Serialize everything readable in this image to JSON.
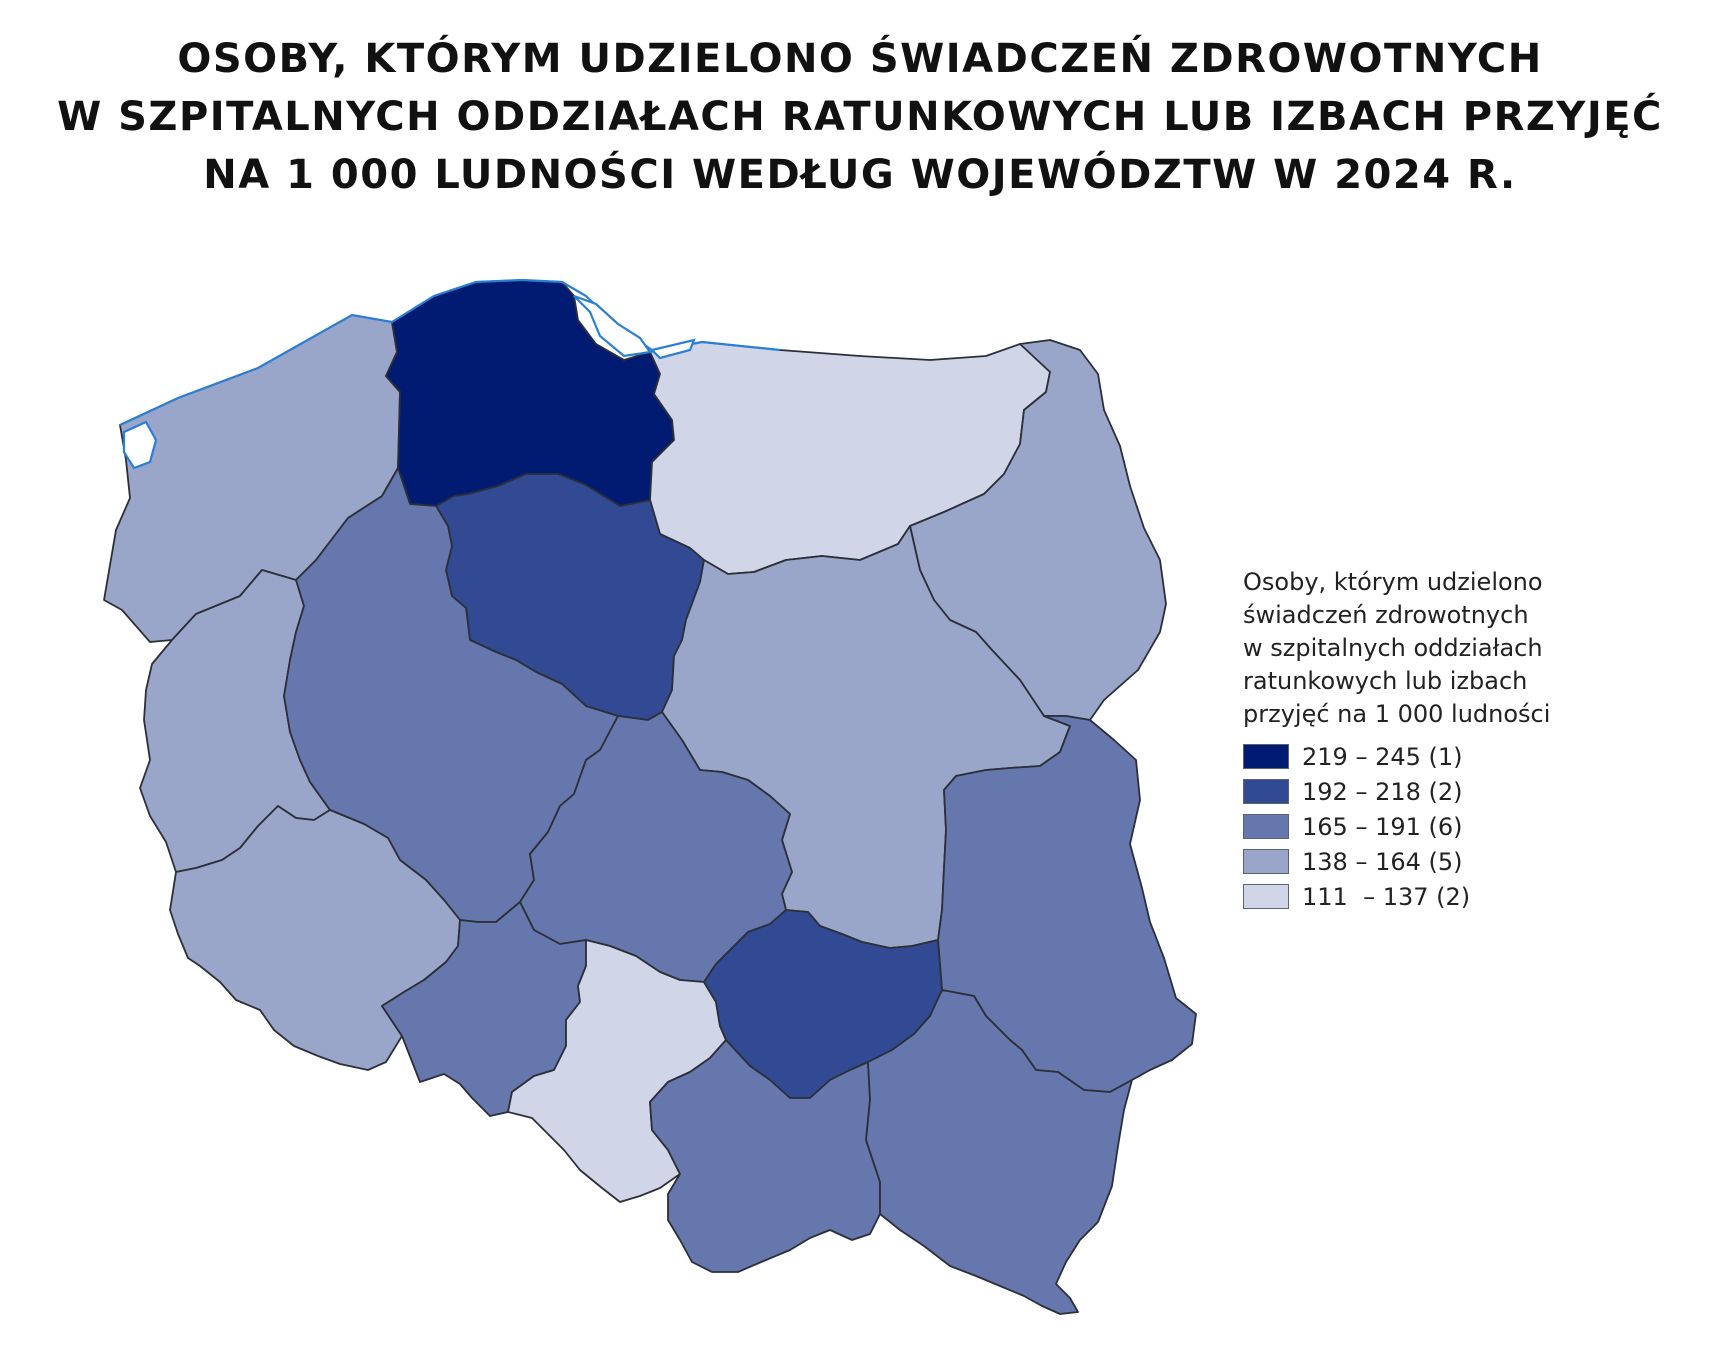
{
  "title_lines": [
    "OSOBY, KTÓRYM UDZIELONO ŚWIADCZEŃ ZDROWOTNYCH",
    "W SZPITALNYCH ODDZIAŁACH RATUNKOWYCH LUB IZBACH PRZYJĘĆ",
    "NA 1 000 LUDNOŚCI WEDŁUG WOJEWÓDZTW W 2024 R."
  ],
  "legend": {
    "title_lines": [
      "Osoby, którym udzielono",
      "świadczeń zdrowotnych",
      "w szpitalnych oddziałach",
      "ratunkowych lub izbach",
      "przyjęć na 1 000 ludności"
    ],
    "classes": [
      {
        "label": "219 – 245 (1)",
        "color": "#021b72"
      },
      {
        "label": "192 – 218 (2)",
        "color": "#324a93"
      },
      {
        "label": "165 – 191 (6)",
        "color": "#6677ad"
      },
      {
        "label": "138 – 164 (5)",
        "color": "#9aa6c9"
      },
      {
        "label": "111  – 137 (2)",
        "color": "#d0d5e7"
      }
    ]
  },
  "regions": [
    {
      "id": "pomorskie",
      "class": 0
    },
    {
      "id": "kujawsko-pomorskie",
      "class": 1
    },
    {
      "id": "swietokrzyskie",
      "class": 1
    },
    {
      "id": "wielkopolskie",
      "class": 2
    },
    {
      "id": "lodzkie",
      "class": 2
    },
    {
      "id": "lubelskie",
      "class": 2
    },
    {
      "id": "opolskie",
      "class": 2
    },
    {
      "id": "malopolskie",
      "class": 2
    },
    {
      "id": "podkarpackie",
      "class": 2
    },
    {
      "id": "zachodniopomorskie",
      "class": 3
    },
    {
      "id": "lubuskie",
      "class": 3
    },
    {
      "id": "dolnoslaskie",
      "class": 3
    },
    {
      "id": "mazowieckie",
      "class": 3
    },
    {
      "id": "podlaskie",
      "class": 3
    },
    {
      "id": "warminsko-mazurskie",
      "class": 4
    },
    {
      "id": "slaskie",
      "class": 4
    }
  ],
  "colors": {
    "border": "#2b2f38",
    "coast": "#2a7fd4"
  }
}
